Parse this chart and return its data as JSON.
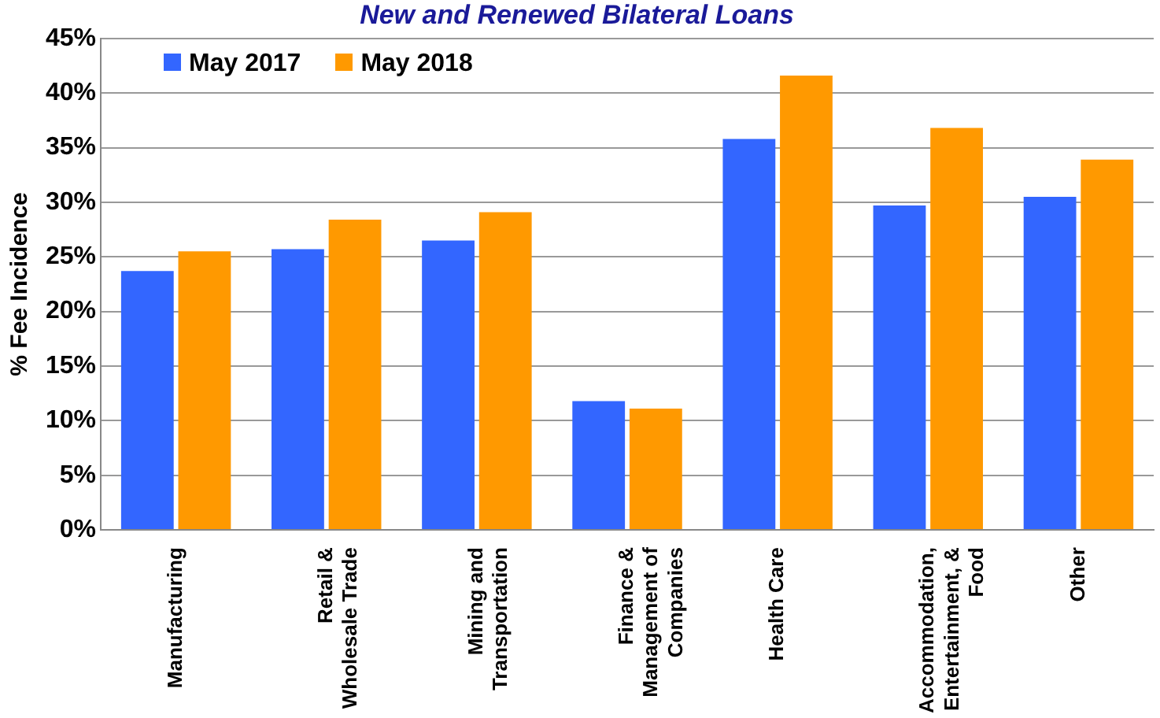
{
  "chart_data": {
    "type": "bar",
    "title": "New and Renewed Bilateral Loans",
    "ylabel": "% Fee Incidence",
    "categories": [
      "Manufacturing",
      "Retail & Wholesale Trade",
      "Mining and Transportation",
      "Finance & Management of Companies",
      "Health Care",
      "Accommodation, Entertainment, & Food",
      "Other"
    ],
    "series": [
      {
        "name": "May 2017",
        "color": "#3366ff",
        "values": [
          23.7,
          25.7,
          26.5,
          11.8,
          35.8,
          29.7,
          30.5
        ]
      },
      {
        "name": "May 2018",
        "color": "#ff9900",
        "values": [
          25.5,
          28.4,
          29.1,
          11.1,
          41.6,
          36.8,
          33.9
        ]
      }
    ],
    "ylim": [
      0,
      45
    ],
    "yticks": [
      {
        "value": 0,
        "label": "0%"
      },
      {
        "value": 5,
        "label": "5%"
      },
      {
        "value": 10,
        "label": "10%"
      },
      {
        "value": 15,
        "label": "15%"
      },
      {
        "value": 20,
        "label": "20%"
      },
      {
        "value": 25,
        "label": "25%"
      },
      {
        "value": 30,
        "label": "30%"
      },
      {
        "value": 35,
        "label": "35%"
      },
      {
        "value": 40,
        "label": "40%"
      },
      {
        "value": 45,
        "label": "45%"
      }
    ],
    "grid": "y",
    "legend": "top left"
  }
}
